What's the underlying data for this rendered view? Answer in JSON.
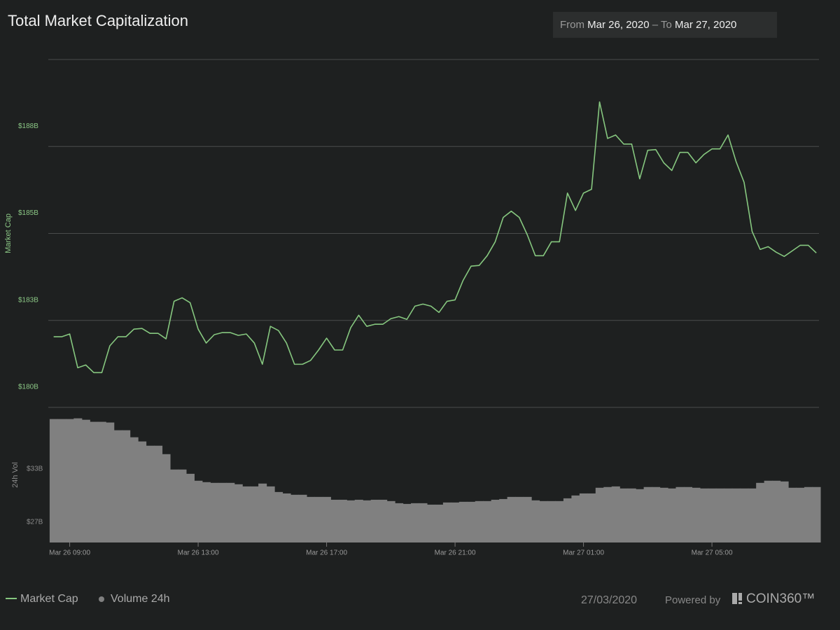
{
  "header": {
    "date_range": {
      "from_label": "From",
      "from": "Mar 26, 2020",
      "separator": "–",
      "to_label": "To",
      "to": "Mar 27, 2020"
    }
  },
  "chart_data": {
    "type": "line",
    "title": "Total Market Capitalization",
    "x": [
      "Mar 26 08:30",
      "Mar 26 08:45",
      "Mar 26 09:00",
      "Mar 26 09:15",
      "Mar 26 09:30",
      "Mar 26 09:45",
      "Mar 26 10:00",
      "Mar 26 10:15",
      "Mar 26 10:30",
      "Mar 26 10:45",
      "Mar 26 11:00",
      "Mar 26 11:15",
      "Mar 26 11:30",
      "Mar 26 11:45",
      "Mar 26 12:00",
      "Mar 26 12:15",
      "Mar 26 12:30",
      "Mar 26 12:45",
      "Mar 26 13:00",
      "Mar 26 13:15",
      "Mar 26 13:30",
      "Mar 26 13:45",
      "Mar 26 14:00",
      "Mar 26 14:15",
      "Mar 26 14:30",
      "Mar 26 14:45",
      "Mar 26 15:00",
      "Mar 26 15:15",
      "Mar 26 15:30",
      "Mar 26 15:45",
      "Mar 26 16:00",
      "Mar 26 16:15",
      "Mar 26 16:30",
      "Mar 26 16:45",
      "Mar 26 17:00",
      "Mar 26 17:15",
      "Mar 26 17:30",
      "Mar 26 17:45",
      "Mar 26 18:00",
      "Mar 26 18:15",
      "Mar 26 18:30",
      "Mar 26 18:45",
      "Mar 26 19:00",
      "Mar 26 19:15",
      "Mar 26 19:30",
      "Mar 26 19:45",
      "Mar 26 20:00",
      "Mar 26 20:15",
      "Mar 26 20:30",
      "Mar 26 20:45",
      "Mar 26 21:00",
      "Mar 26 21:15",
      "Mar 26 21:30",
      "Mar 26 21:45",
      "Mar 26 22:00",
      "Mar 26 22:15",
      "Mar 26 22:30",
      "Mar 26 22:45",
      "Mar 26 23:00",
      "Mar 26 23:15",
      "Mar 26 23:30",
      "Mar 26 23:45",
      "Mar 27 00:00",
      "Mar 27 00:15",
      "Mar 27 00:30",
      "Mar 27 00:45",
      "Mar 27 01:00",
      "Mar 27 01:15",
      "Mar 27 01:30",
      "Mar 27 01:45",
      "Mar 27 02:00",
      "Mar 27 02:15",
      "Mar 27 02:30",
      "Mar 27 02:45",
      "Mar 27 03:00",
      "Mar 27 03:15",
      "Mar 27 03:30",
      "Mar 27 03:45",
      "Mar 27 04:00",
      "Mar 27 04:15",
      "Mar 27 04:30",
      "Mar 27 04:45",
      "Mar 27 05:00",
      "Mar 27 05:15",
      "Mar 27 05:30",
      "Mar 27 05:45",
      "Mar 27 06:00",
      "Mar 27 06:15",
      "Mar 27 06:30",
      "Mar 27 06:45",
      "Mar 27 07:00",
      "Mar 27 07:15",
      "Mar 27 07:30",
      "Mar 27 07:45",
      "Mar 27 08:00",
      "Mar 27 08:15"
    ],
    "xlim": [
      "Mar 26 08:20",
      "Mar 27 08:20"
    ],
    "xticks": [
      "Mar 26 09:00",
      "Mar 26 13:00",
      "Mar 26 17:00",
      "Mar 26 21:00",
      "Mar 27 01:00",
      "Mar 27 05:00"
    ],
    "grid": true,
    "series": [
      {
        "name": "Market Cap",
        "color": "#86c77f",
        "ylabel": "Market Cap",
        "ylim": [
          180,
          190
        ],
        "yticks": [
          {
            "value": 180,
            "label": "$180B"
          },
          {
            "value": 182.5,
            "label": "$183B"
          },
          {
            "value": 185,
            "label": "$185B"
          },
          {
            "value": 187.5,
            "label": "$188B"
          }
        ],
        "values": [
          182.03,
          182.03,
          182.11,
          181.14,
          181.22,
          181.0,
          181.0,
          181.77,
          182.03,
          182.03,
          182.25,
          182.27,
          182.13,
          182.13,
          181.97,
          183.05,
          183.15,
          183.01,
          182.25,
          181.85,
          182.09,
          182.15,
          182.15,
          182.07,
          182.11,
          181.85,
          181.24,
          182.33,
          182.21,
          181.85,
          181.24,
          181.24,
          181.35,
          181.65,
          181.99,
          181.65,
          181.65,
          182.29,
          182.65,
          182.33,
          182.39,
          182.39,
          182.55,
          182.61,
          182.53,
          182.91,
          182.97,
          182.91,
          182.73,
          183.05,
          183.09,
          183.65,
          184.06,
          184.08,
          184.36,
          184.76,
          185.46,
          185.64,
          185.46,
          184.96,
          184.36,
          184.36,
          184.76,
          184.76,
          186.16,
          185.66,
          186.16,
          186.27,
          188.78,
          187.73,
          187.83,
          187.57,
          187.57,
          186.57,
          187.39,
          187.41,
          187.03,
          186.81,
          187.33,
          187.33,
          187.03,
          187.27,
          187.43,
          187.43,
          187.83,
          187.07,
          186.47,
          185.06,
          184.54,
          184.62,
          184.46,
          184.34,
          184.5,
          184.66,
          184.66,
          184.44
        ]
      },
      {
        "name": "Volume 24h",
        "type": "bar",
        "color": "#808080",
        "ylabel": "24h Vol",
        "ylim": [
          27,
          42.2
        ],
        "yticks": [
          {
            "value": 27,
            "label": "$27B"
          },
          {
            "value": 33,
            "label": "$33B"
          }
        ],
        "values": [
          40.89,
          40.89,
          40.89,
          40.97,
          40.81,
          40.58,
          40.58,
          40.5,
          39.63,
          39.63,
          38.84,
          38.37,
          37.89,
          37.89,
          36.94,
          35.21,
          35.21,
          34.73,
          33.95,
          33.79,
          33.71,
          33.71,
          33.71,
          33.55,
          33.31,
          33.31,
          33.63,
          33.31,
          32.68,
          32.52,
          32.37,
          32.37,
          32.13,
          32.13,
          32.13,
          31.81,
          31.81,
          31.74,
          31.81,
          31.74,
          31.81,
          31.81,
          31.66,
          31.42,
          31.34,
          31.42,
          31.42,
          31.26,
          31.26,
          31.5,
          31.5,
          31.58,
          31.58,
          31.66,
          31.66,
          31.81,
          31.89,
          32.13,
          32.13,
          32.13,
          31.74,
          31.66,
          31.66,
          31.66,
          31.97,
          32.29,
          32.52,
          32.52,
          33.16,
          33.24,
          33.31,
          33.08,
          33.08,
          33.0,
          33.24,
          33.24,
          33.16,
          33.08,
          33.24,
          33.24,
          33.16,
          33.08,
          33.08,
          33.08,
          33.08,
          33.08,
          33.08,
          33.08,
          33.71,
          33.95,
          33.95,
          33.87,
          33.16,
          33.16,
          33.24,
          33.24
        ]
      }
    ]
  },
  "footer": {
    "date": "27/03/2020",
    "powered_by": "Powered by",
    "brand": "COIN360™"
  }
}
